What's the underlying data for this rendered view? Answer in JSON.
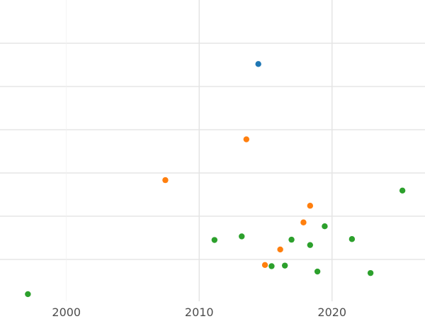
{
  "chart_data": {
    "type": "scatter",
    "title": "",
    "xlabel": "",
    "ylabel": "",
    "xlim": [
      1995,
      2027
    ],
    "ylim": [
      0,
      1
    ],
    "x_ticks": [
      2000,
      2010,
      2020
    ],
    "x_tick_labels": [
      "2000",
      "2010",
      "2020"
    ],
    "grid": true,
    "legend": "none",
    "series": [
      {
        "color": "#1f77b4",
        "points": [
          {
            "x": 2014.45,
            "y": 0.785
          }
        ]
      },
      {
        "color": "#ff7f0e",
        "points": [
          {
            "x": 2007.45,
            "y": 0.395
          },
          {
            "x": 2013.55,
            "y": 0.532
          },
          {
            "x": 2014.95,
            "y": 0.11
          },
          {
            "x": 2016.1,
            "y": 0.162
          },
          {
            "x": 2017.85,
            "y": 0.253
          },
          {
            "x": 2018.35,
            "y": 0.309
          }
        ]
      },
      {
        "color": "#2ca02c",
        "points": [
          {
            "x": 1997.1,
            "y": 0.012
          },
          {
            "x": 2011.15,
            "y": 0.194
          },
          {
            "x": 2013.2,
            "y": 0.206
          },
          {
            "x": 2015.45,
            "y": 0.106
          },
          {
            "x": 2016.45,
            "y": 0.108
          },
          {
            "x": 2016.95,
            "y": 0.195
          },
          {
            "x": 2018.35,
            "y": 0.177
          },
          {
            "x": 2018.9,
            "y": 0.088
          },
          {
            "x": 2019.45,
            "y": 0.24
          },
          {
            "x": 2021.5,
            "y": 0.197
          },
          {
            "x": 2022.9,
            "y": 0.083
          },
          {
            "x": 2025.3,
            "y": 0.36
          }
        ]
      }
    ]
  }
}
